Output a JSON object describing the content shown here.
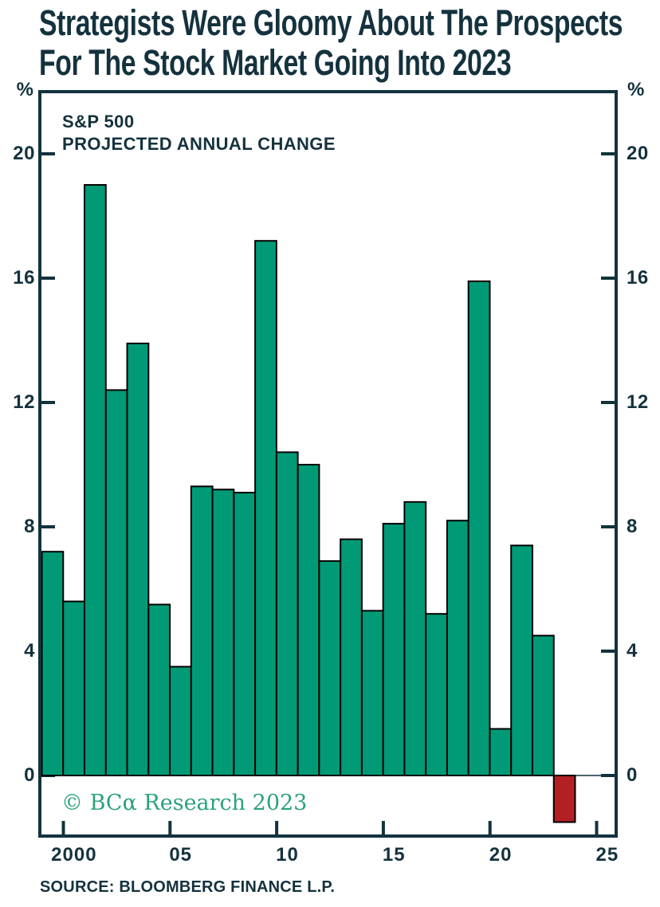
{
  "title": {
    "line1": "Strategists Were Gloomy About The Prospects",
    "line2": "For The Stock Market Going Into 2023"
  },
  "chart": {
    "series_label_line1": "S&P 500",
    "series_label_line2": "PROJECTED ANNUAL CHANGE",
    "unit_symbol": "%",
    "watermark": "© BCα Research 2023",
    "source": "SOURCE: BLOOMBERG FINANCE L.P."
  },
  "colors": {
    "ink": "#14323E",
    "bar_green": "#009A77",
    "bar_red": "#B32024",
    "bar_outline": "#000000",
    "watermark_green": "#2BA17D",
    "background": "#FFFFFF"
  },
  "chart_data": {
    "type": "bar",
    "title": "S&P 500 PROJECTED ANNUAL CHANGE",
    "xlabel": "",
    "ylabel": "%",
    "grid": false,
    "legend": "none",
    "ylim": [
      -2,
      22
    ],
    "y_ticks": [
      0,
      4,
      8,
      12,
      16,
      20
    ],
    "y_tick_labels_both_sides": true,
    "x_tick_labels": [
      "2000",
      "05",
      "10",
      "15",
      "20",
      "25"
    ],
    "x_tick_years": [
      2000,
      2005,
      2010,
      2015,
      2020,
      2025
    ],
    "categories": [
      1999,
      2000,
      2001,
      2002,
      2003,
      2004,
      2005,
      2006,
      2007,
      2008,
      2009,
      2010,
      2011,
      2012,
      2013,
      2014,
      2015,
      2016,
      2017,
      2018,
      2019,
      2020,
      2021,
      2022,
      2023
    ],
    "values": [
      7.2,
      5.6,
      19.0,
      12.4,
      13.9,
      5.5,
      3.5,
      9.3,
      9.2,
      9.1,
      17.2,
      10.4,
      10.0,
      6.9,
      7.6,
      5.3,
      8.1,
      8.8,
      5.2,
      8.2,
      15.9,
      1.5,
      7.4,
      4.5,
      -1.5
    ],
    "bar_color": "#009A77",
    "negative_bar_color": "#B32024",
    "bar_outline_color": "#000000",
    "frame_color": "#14323E"
  }
}
